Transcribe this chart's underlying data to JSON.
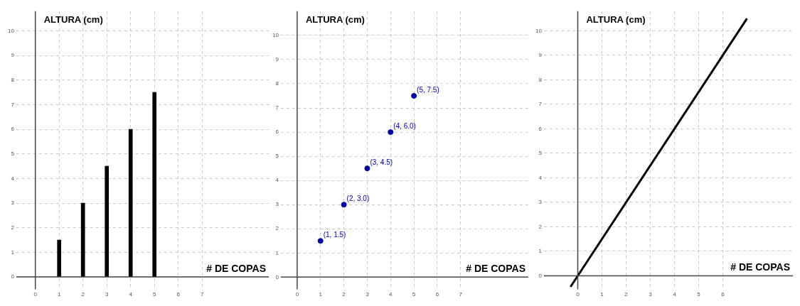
{
  "chart_data": [
    {
      "type": "bar",
      "ylabel": "ALTURA (cm)",
      "xlabel": "# DE COPAS",
      "x": [
        1,
        2,
        3,
        4,
        5
      ],
      "values": [
        1.5,
        3,
        4.5,
        6,
        7.5
      ],
      "color": "#000000",
      "xlim": [
        -0.8,
        9.8
      ],
      "ylim": [
        -0.5,
        10.8
      ],
      "xticks": [
        0,
        1,
        2,
        3,
        4,
        5,
        6,
        7
      ],
      "yticks": [
        0,
        1,
        2,
        3,
        4,
        5,
        6,
        7,
        8,
        9,
        10
      ],
      "grid": true
    },
    {
      "type": "scatter",
      "ylabel": "ALTURA (cm)",
      "xlabel": "# DE COPAS",
      "x": [
        1,
        2,
        3,
        4,
        5
      ],
      "values": [
        1.5,
        3,
        4.5,
        6,
        7.5
      ],
      "value_labels": [
        "(1, 1.5)",
        "(2, 3.0)",
        "(3, 4.5)",
        "(4, 6.0)",
        "(5, 7.5)"
      ],
      "color": "#0000aa",
      "marker": "circle",
      "xlim": [
        -0.7,
        9.9
      ],
      "ylim": [
        -0.5,
        11
      ],
      "xticks": [
        0,
        1,
        2,
        3,
        4,
        5,
        6,
        7
      ],
      "yticks": [
        0,
        1,
        2,
        3,
        4,
        5,
        6,
        7,
        8,
        9,
        10
      ],
      "grid": true
    },
    {
      "type": "line",
      "ylabel": "ALTURA (cm)",
      "xlabel": "# DE COPAS",
      "x": [
        -0.3,
        7
      ],
      "values": [
        -0.45,
        10.5
      ],
      "color": "#000000",
      "xlim": [
        -1.4,
        8.9
      ],
      "ylim": [
        -0.55,
        10.8
      ],
      "xticks": [
        0,
        1,
        2,
        3,
        4,
        5,
        6
      ],
      "yticks": [
        0,
        1,
        2,
        3,
        4,
        5,
        6,
        7,
        8,
        9,
        10
      ],
      "grid": true
    }
  ]
}
